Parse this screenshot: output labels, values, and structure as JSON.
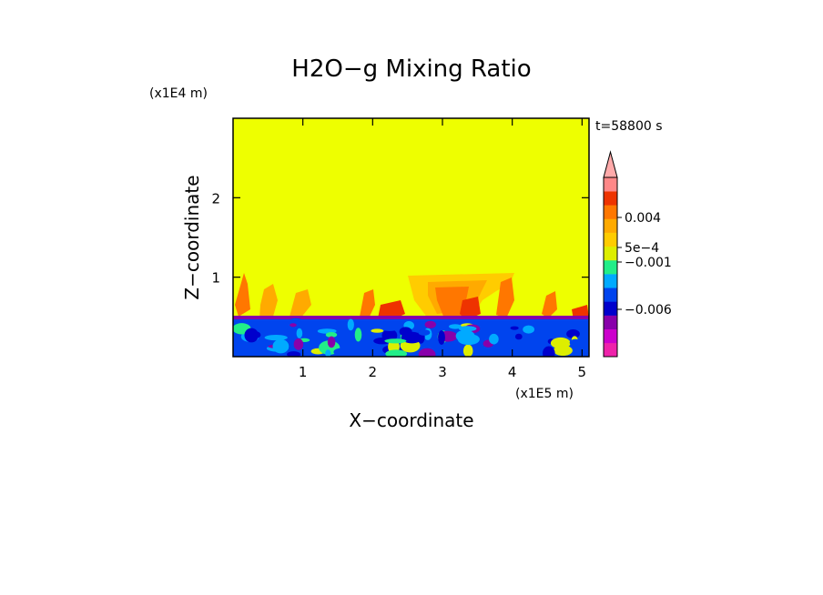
{
  "chart_data": {
    "type": "heatmap",
    "title": "H2O−g Mixing Ratio",
    "xlabel": "X−coordinate",
    "ylabel": "Z−coordinate",
    "x_scale_label": "(x1E5 m)",
    "y_scale_label": "(x1E4 m)",
    "time_label": "t=58800 s",
    "x_ticks": [
      {
        "label": "1",
        "value": 1
      },
      {
        "label": "2",
        "value": 2
      },
      {
        "label": "3",
        "value": 3
      },
      {
        "label": "4",
        "value": 4
      },
      {
        "label": "5",
        "value": 5
      }
    ],
    "y_ticks": [
      {
        "label": "1",
        "value": 1
      },
      {
        "label": "2",
        "value": 2
      }
    ],
    "xlim": [
      0,
      5.1
    ],
    "ylim": [
      0,
      3.0
    ],
    "background_level_color": "#eeff00",
    "colorbar": {
      "levels": [
        {
          "color": "#ee22aa"
        },
        {
          "color": "#cc00cc"
        },
        {
          "color": "#8800aa"
        },
        {
          "color": "#0000cc"
        },
        {
          "color": "#0044ee"
        },
        {
          "color": "#00aaff"
        },
        {
          "color": "#22ee88"
        },
        {
          "color": "#ddee00"
        },
        {
          "color": "#ffcc00"
        },
        {
          "color": "#ffaa00"
        },
        {
          "color": "#ff7700"
        },
        {
          "color": "#ee3300"
        },
        {
          "color": "#ff8888"
        }
      ],
      "overflow_color": "#ffaaaa",
      "labels": [
        {
          "label": "0.004",
          "value": 0.004
        },
        {
          "label": "5e−4",
          "value": 0.0005
        },
        {
          "label": "−0.001",
          "value": -0.001
        },
        {
          "label": "−0.006",
          "value": -0.006
        }
      ]
    }
  }
}
